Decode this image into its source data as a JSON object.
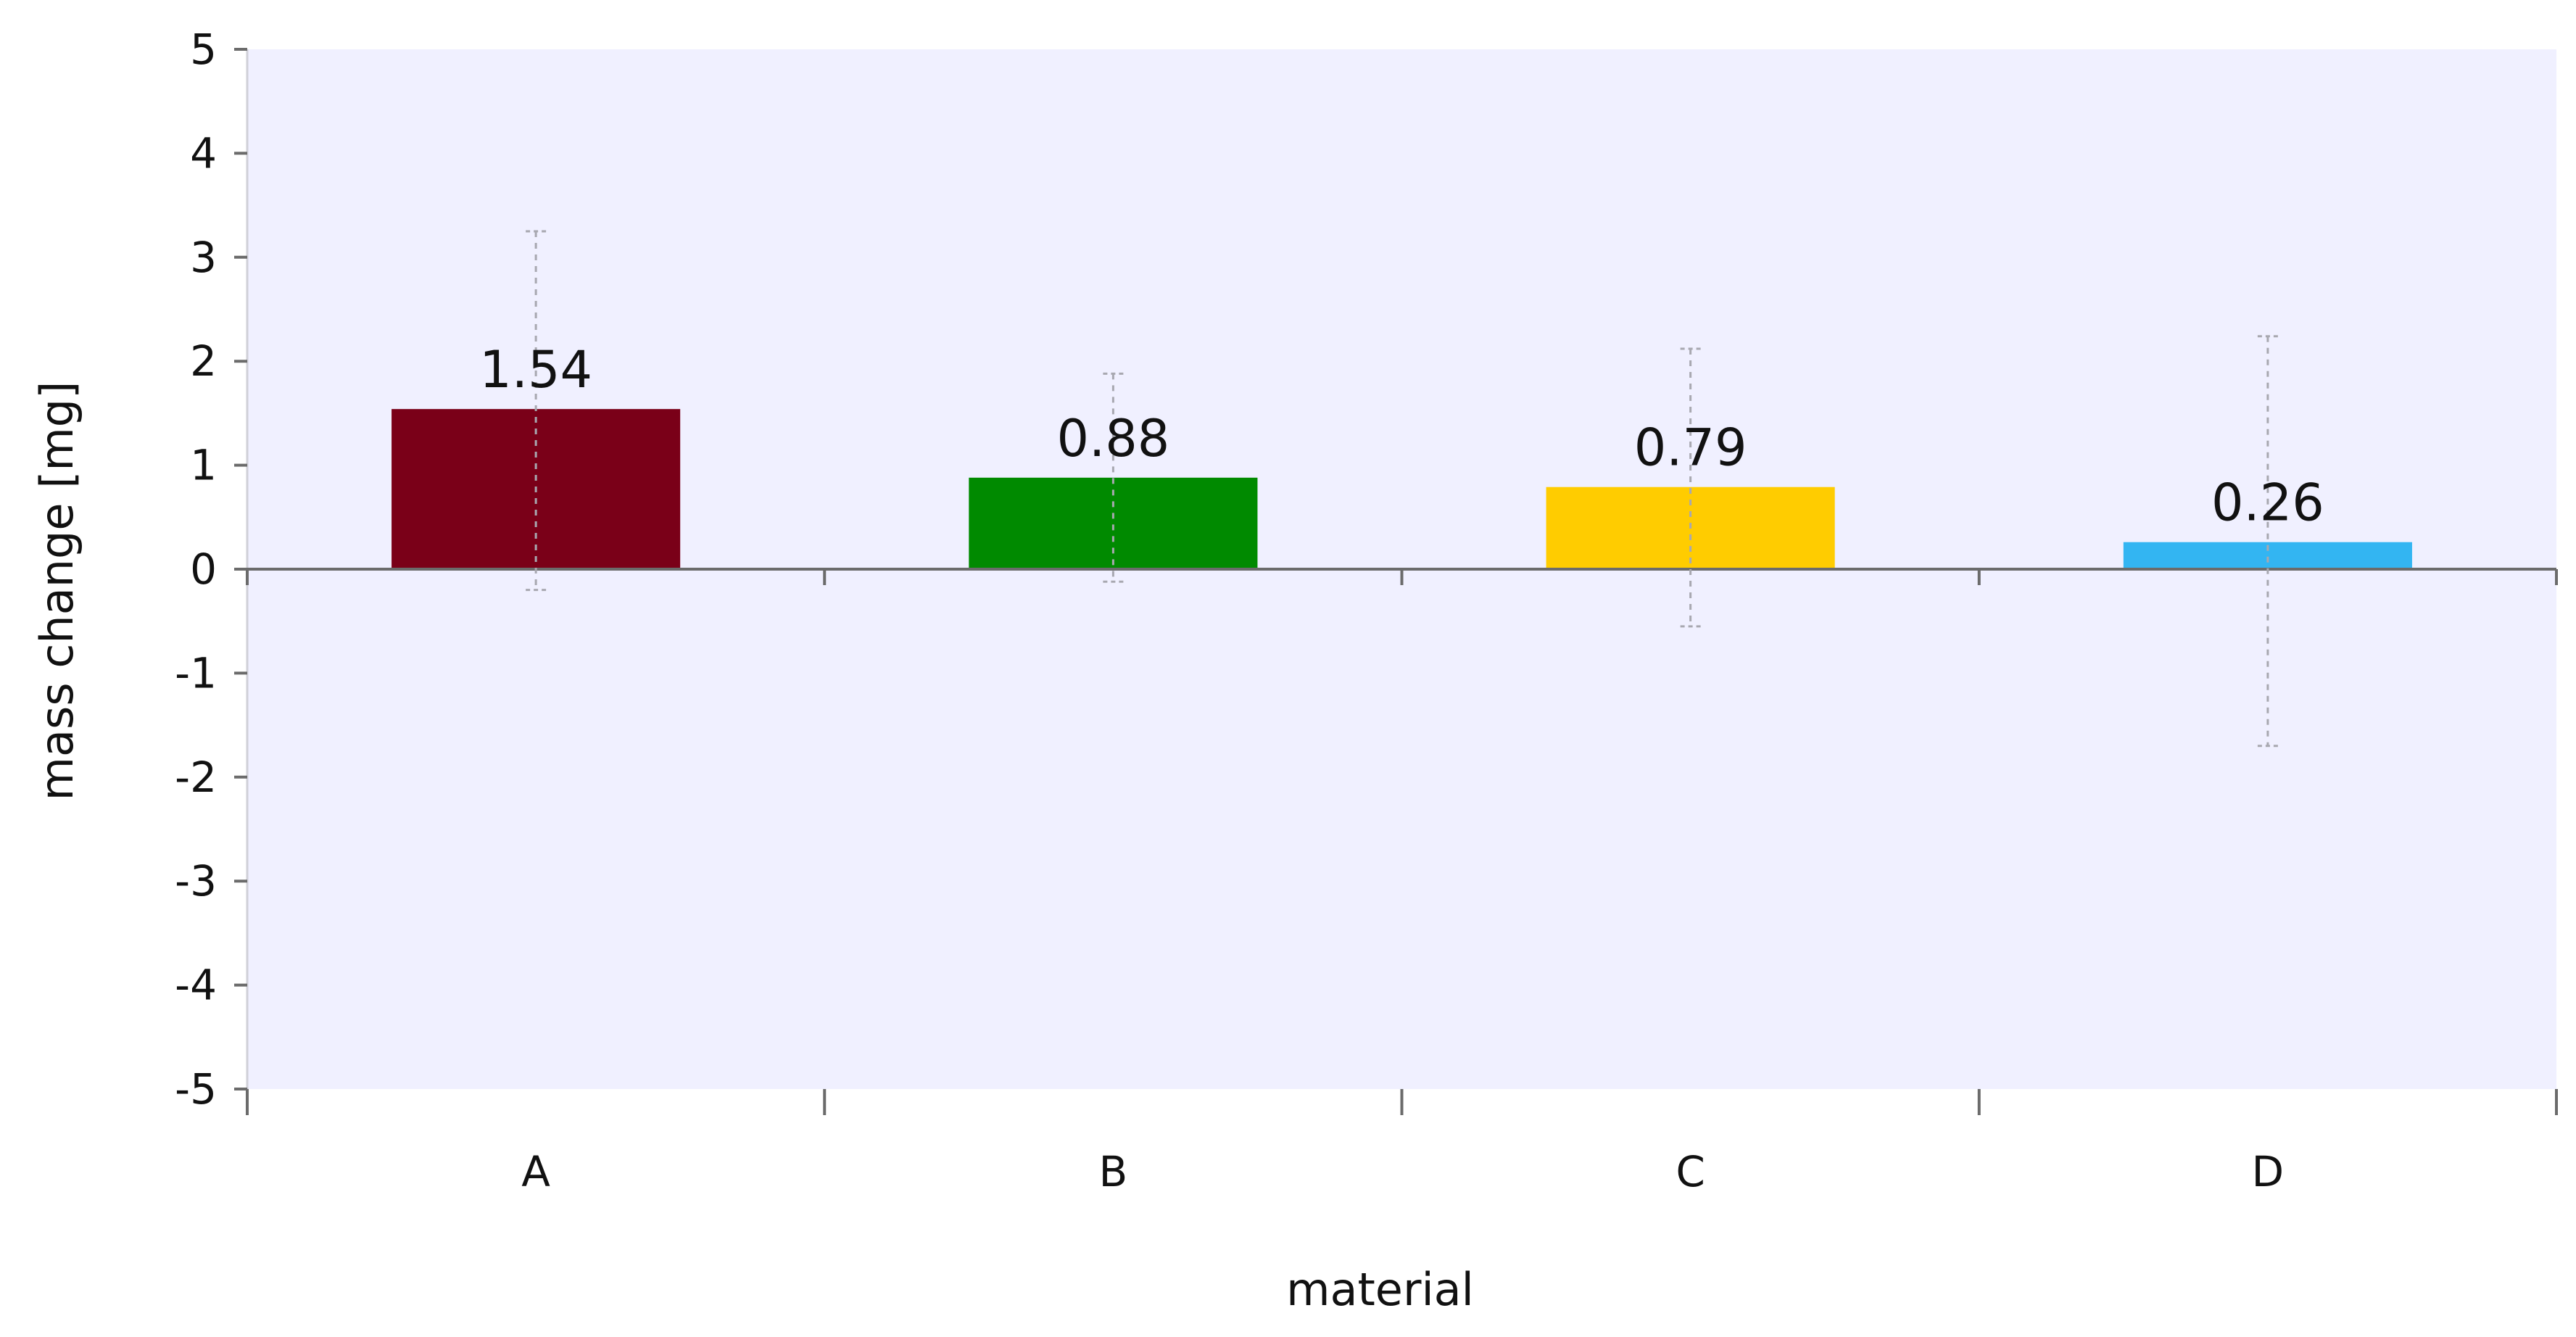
{
  "chart_data": {
    "type": "bar",
    "categories": [
      "A",
      "B",
      "C",
      "D"
    ],
    "values": [
      1.54,
      0.88,
      0.79,
      0.26
    ],
    "data_labels": [
      "1.54",
      "0.88",
      "0.79",
      "0.26"
    ],
    "error_low": [
      -0.2,
      -0.12,
      -0.55,
      -1.7
    ],
    "error_high": [
      3.25,
      1.88,
      2.12,
      2.24
    ],
    "colors": [
      "#7a0018",
      "#008a00",
      "#ffcc00",
      "#33b5f2"
    ],
    "title": "",
    "xlabel": "material",
    "ylabel": "mass change [mg]",
    "ylim": [
      -5,
      5
    ],
    "yticks": [
      "5",
      "4",
      "3",
      "2",
      "1",
      "0",
      "-1",
      "-2",
      "-3",
      "-4",
      "-5"
    ],
    "ytick_values": [
      5,
      4,
      3,
      2,
      1,
      0,
      -1,
      -2,
      -3,
      -4,
      -5
    ],
    "grid": false,
    "legend": "none",
    "plot_background": "#f0f0ff"
  }
}
